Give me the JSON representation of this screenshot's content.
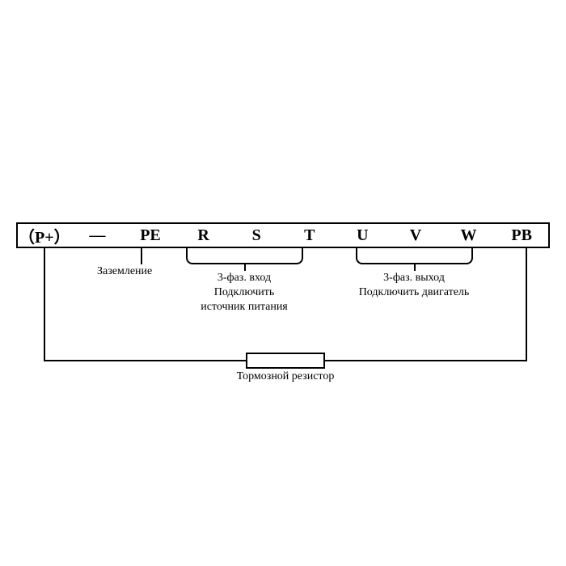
{
  "diagram": {
    "type": "wiring-diagram",
    "terminals": [
      "（P+）",
      "—",
      "PE",
      "R",
      "S",
      "T",
      "U",
      "V",
      "W",
      "PB"
    ],
    "ground_label": "Заземление",
    "input_label_line1": "3-фаз. вход",
    "input_label_line2": "Подключить",
    "input_label_line3": "источник питания",
    "output_label_line1": "3-фаз. выход",
    "output_label_line2": "Подключить двигатель",
    "resistor_label": "Тормозной резистор",
    "colors": {
      "stroke": "#000000",
      "background": "#ffffff",
      "text": "#000000"
    },
    "terminal_fontsize": 20,
    "label_fontsize": 14,
    "strip_border_width": 2,
    "line_width": 2
  }
}
